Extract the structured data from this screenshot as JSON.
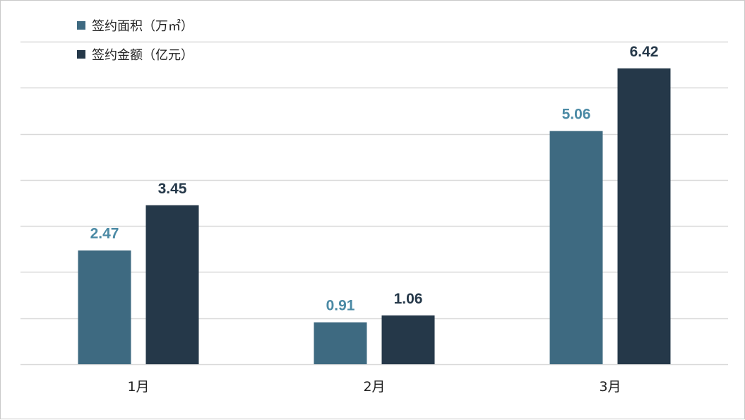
{
  "chart_data": {
    "type": "bar",
    "categories": [
      "1月",
      "2月",
      "3月"
    ],
    "series": [
      {
        "name": "签约面积（万㎡）",
        "values": [
          2.47,
          0.91,
          5.06
        ],
        "color": "#3e6a81",
        "label_color": "#4b8aa5"
      },
      {
        "name": "签约金额（亿元）",
        "values": [
          3.45,
          1.06,
          6.42
        ],
        "color": "#253849",
        "label_color": "#253849"
      }
    ],
    "ylim": [
      0,
      7
    ],
    "grid": true,
    "legend_position": "top-left",
    "gridline_color": "#d9d9d9"
  }
}
